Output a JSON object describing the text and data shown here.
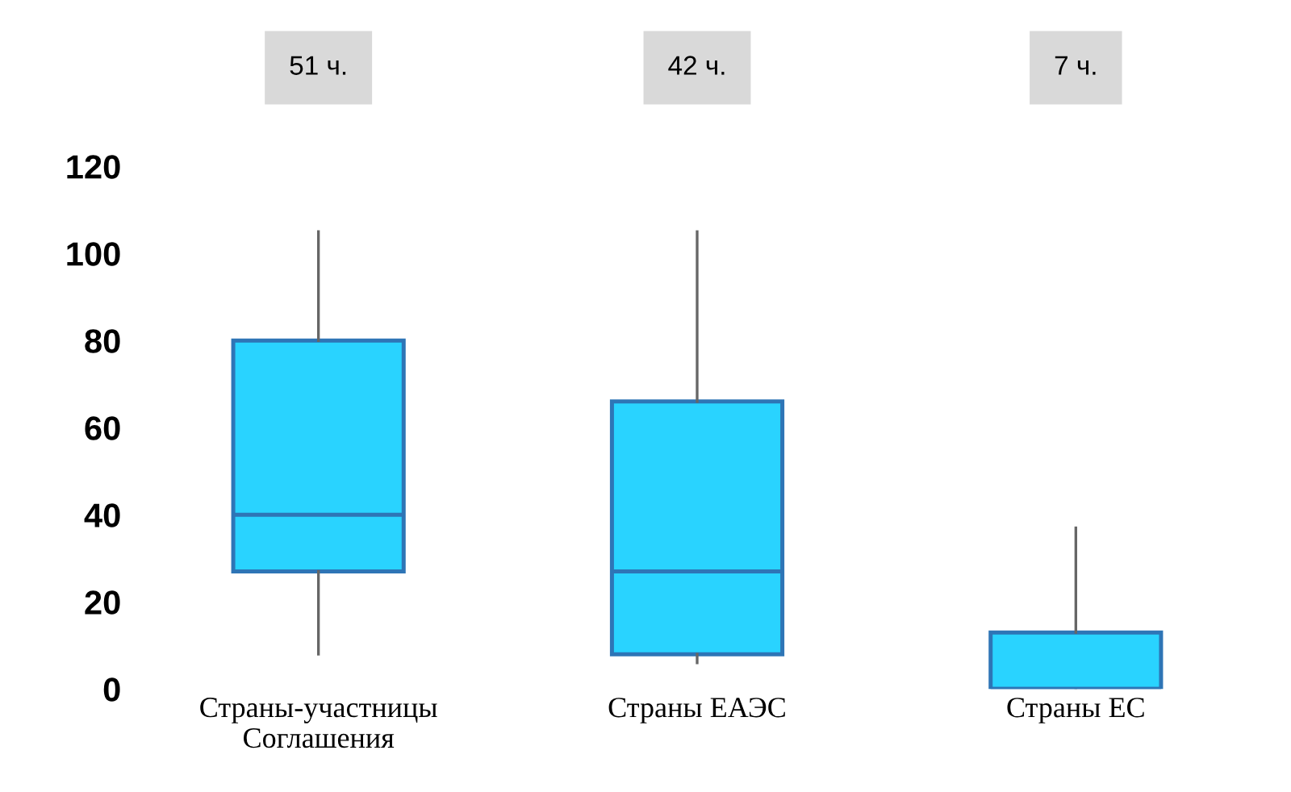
{
  "chart_data": {
    "type": "box",
    "categories": [
      "Страны-участницы\nСоглашения",
      "Страны ЕАЭС",
      "Страны ЕС"
    ],
    "boxes": [
      {
        "low": 8,
        "q1": 27,
        "median": 40,
        "q3": 80,
        "high": 105
      },
      {
        "low": 6,
        "q1": 8,
        "median": 27,
        "q3": 66,
        "high": 105
      },
      {
        "low": 0,
        "q1": 0,
        "median": 0,
        "q3": 13,
        "high": 37
      }
    ],
    "color": "#29d3ff",
    "ylim": [
      0,
      120
    ],
    "yticks": [
      0,
      20,
      40,
      60,
      80,
      100,
      120
    ],
    "grid": false,
    "annotations": [
      "51 ч.",
      "42 ч.",
      "7 ч."
    ]
  }
}
